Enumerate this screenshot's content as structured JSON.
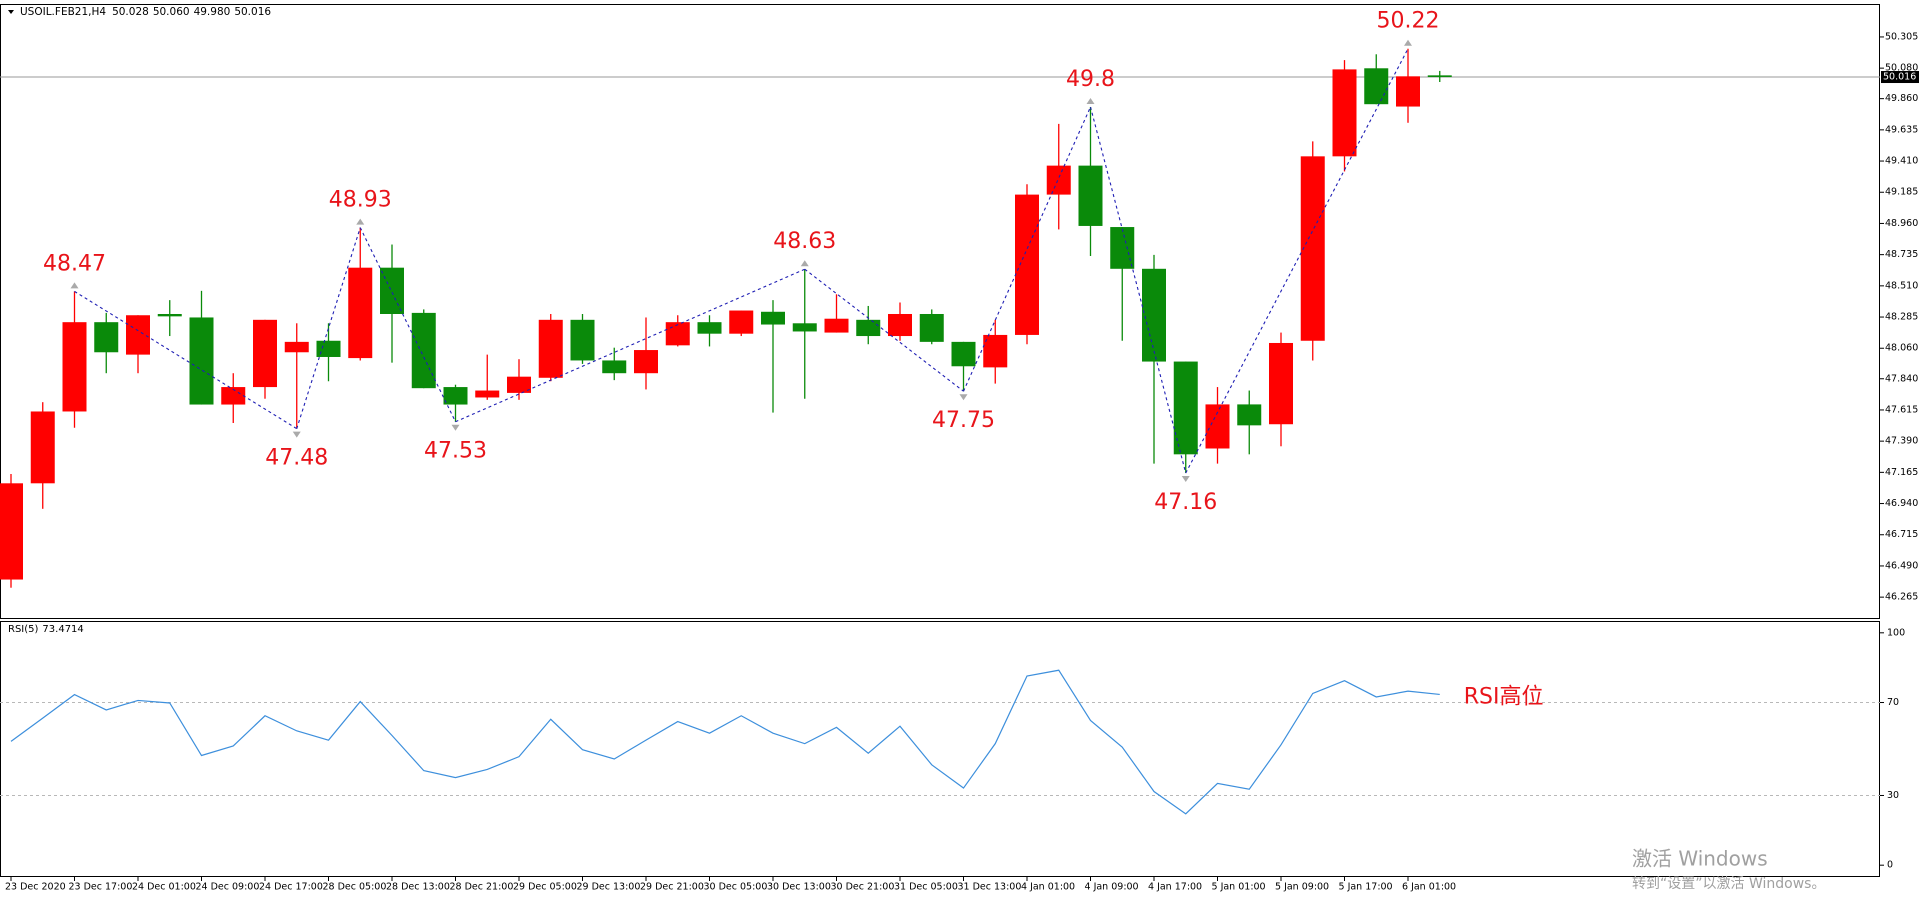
{
  "chart_data": [
    {
      "type": "candlestick",
      "title": "USOIL.FEB21,H4",
      "quote": [
        "50.028",
        "50.060",
        "49.980",
        "50.016"
      ],
      "categories": [
        "23 Dec 2020",
        null,
        "23 Dec 17:00",
        null,
        "24 Dec 01:00",
        null,
        "24 Dec 09:00",
        null,
        "24 Dec 17:00",
        null,
        "28 Dec 05:00",
        null,
        "28 Dec 13:00",
        null,
        "28 Dec 21:00",
        null,
        "29 Dec 05:00",
        null,
        "29 Dec 13:00",
        null,
        "29 Dec 21:00",
        null,
        "30 Dec 05:00",
        null,
        "30 Dec 13:00",
        null,
        "30 Dec 21:00",
        null,
        "31 Dec 05:00",
        null,
        "31 Dec 13:00",
        null,
        "4 Jan 01:00",
        null,
        "4 Jan 09:00",
        null,
        "4 Jan 17:00",
        null,
        "5 Jan 01:00",
        null,
        "5 Jan 09:00",
        null,
        "5 Jan 17:00",
        null,
        "6 Jan 01:00",
        null
      ],
      "open": [
        46.392,
        47.086,
        47.604,
        48.248,
        48.014,
        48.307,
        48.282,
        47.654,
        47.78,
        48.031,
        48.114,
        47.989,
        48.641,
        48.315,
        47.78,
        47.705,
        47.738,
        47.847,
        48.265,
        47.972,
        47.88,
        48.081,
        48.248,
        48.165,
        48.323,
        48.24,
        48.173,
        48.265,
        48.148,
        48.307,
        48.106,
        47.922,
        48.156,
        49.168,
        49.377,
        48.934,
        48.633,
        47.964,
        47.337,
        47.655,
        47.512,
        48.114,
        49.444,
        50.079,
        49.803,
        50.028
      ],
      "high": [
        47.153,
        47.671,
        48.47,
        48.315,
        48.298,
        48.407,
        48.474,
        47.88,
        48.265,
        48.24,
        48.24,
        48.93,
        48.808,
        48.34,
        47.797,
        48.014,
        47.981,
        48.307,
        48.307,
        48.064,
        48.282,
        48.298,
        48.298,
        48.332,
        48.407,
        48.63,
        48.449,
        48.365,
        48.39,
        48.34,
        48.106,
        48.265,
        49.243,
        49.678,
        49.8,
        48.934,
        48.733,
        47.964,
        47.78,
        47.755,
        48.173,
        49.552,
        50.138,
        50.18,
        50.22,
        50.06
      ],
      "low": [
        46.333,
        46.902,
        47.487,
        47.88,
        47.88,
        48.148,
        47.654,
        47.521,
        47.696,
        47.48,
        47.822,
        47.972,
        47.956,
        47.772,
        47.53,
        47.688,
        47.688,
        47.822,
        47.947,
        47.83,
        47.763,
        48.073,
        48.073,
        48.148,
        47.596,
        47.696,
        48.173,
        48.089,
        48.114,
        48.089,
        47.75,
        47.805,
        48.089,
        48.917,
        48.725,
        48.114,
        47.228,
        47.16,
        47.228,
        47.295,
        47.353,
        47.972,
        49.335,
        49.82,
        49.686,
        49.98
      ],
      "close": [
        47.086,
        47.604,
        48.248,
        48.031,
        48.298,
        48.29,
        47.654,
        47.78,
        48.265,
        48.106,
        47.997,
        48.641,
        48.307,
        47.772,
        47.654,
        47.755,
        47.855,
        48.265,
        47.972,
        47.88,
        48.047,
        48.248,
        48.165,
        48.332,
        48.231,
        48.181,
        48.273,
        48.148,
        48.307,
        48.106,
        47.93,
        48.156,
        49.168,
        49.377,
        48.942,
        48.633,
        47.964,
        47.295,
        47.655,
        47.504,
        48.098,
        49.444,
        50.071,
        49.82,
        50.021,
        50.016
      ],
      "up_color": "#ff0000",
      "down_color": "#0a8a0a",
      "ylim": [
        46.23,
        50.42
      ],
      "yticks": [
        50.305,
        {
          "value": 50.08,
          "label": "50.080"
        },
        {
          "value": 49.86,
          "label": "49.860"
        },
        49.635,
        {
          "value": 49.41,
          "label": "49.410"
        },
        49.185,
        {
          "value": 48.96,
          "label": "48.960"
        },
        48.735,
        {
          "value": 48.51,
          "label": "48.510"
        },
        48.285,
        {
          "value": 48.06,
          "label": "48.060"
        },
        {
          "value": 47.84,
          "label": "47.840"
        },
        47.615,
        {
          "value": 47.39,
          "label": "47.390"
        },
        47.165,
        {
          "value": 46.94,
          "label": "46.940"
        },
        46.715,
        {
          "value": 46.49,
          "label": "46.490"
        },
        46.265
      ],
      "current_price": 50.016,
      "zigzag": {
        "color": "#1f1fb4",
        "label_color": "#e8141a",
        "values": [
          null,
          null,
          48.47,
          null,
          null,
          null,
          null,
          null,
          null,
          47.48,
          null,
          48.93,
          null,
          null,
          47.53,
          null,
          null,
          null,
          null,
          null,
          null,
          null,
          null,
          null,
          null,
          48.63,
          null,
          null,
          null,
          null,
          47.75,
          null,
          null,
          null,
          49.8,
          null,
          null,
          47.16,
          null,
          null,
          null,
          null,
          null,
          null,
          50.22,
          null
        ]
      }
    },
    {
      "type": "line",
      "title": "RSI(5)",
      "color": "#3d8fdc",
      "values": [
        53.3,
        63.3,
        73.4,
        66.8,
        70.9,
        69.8,
        47.2,
        51.3,
        64.3,
        57.8,
        53.8,
        70.4,
        55.8,
        40.7,
        37.7,
        41.2,
        46.7,
        62.8,
        49.7,
        45.7,
        53.8,
        61.8,
        56.8,
        64.3,
        56.8,
        52.3,
        59.3,
        48.2,
        59.8,
        43.2,
        33.2,
        52.3,
        81.4,
        83.9,
        62.3,
        50.8,
        31.7,
        22.1,
        35.2,
        32.7,
        51.8,
        73.9,
        79.4,
        72.4,
        74.9,
        73.4714
      ],
      "ylim": [
        -2.5,
        102.5
      ],
      "yticks": [
        100,
        70,
        30,
        0
      ],
      "levels": [
        70,
        30
      ],
      "annotation": "RSI高位",
      "annotation_color": "#e8141a"
    }
  ],
  "watermark": {
    "title": "激活 Windows",
    "subtitle": "转到“设置”以激活 Windows。"
  }
}
